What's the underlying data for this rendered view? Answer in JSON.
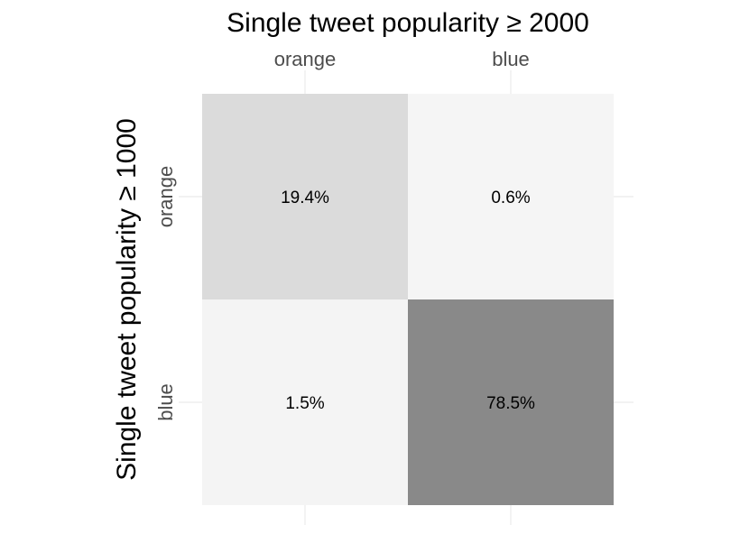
{
  "chart_data": {
    "type": "heatmap",
    "xlabel": "Single tweet popularity ≥ 2000",
    "ylabel": "Single tweet popularity ≥ 1000",
    "x_categories": [
      "orange",
      "blue"
    ],
    "y_categories": [
      "orange",
      "blue"
    ],
    "x_axis_position": "top",
    "values": [
      [
        19.4,
        0.6
      ],
      [
        1.5,
        78.5
      ]
    ],
    "labels": [
      [
        "19.4%",
        "0.6%"
      ],
      [
        "1.5%",
        "78.5%"
      ]
    ],
    "unit": "%",
    "color_scale": {
      "low": "#f5f5f5",
      "high": "#898989"
    },
    "grid": true,
    "legend": "none"
  }
}
